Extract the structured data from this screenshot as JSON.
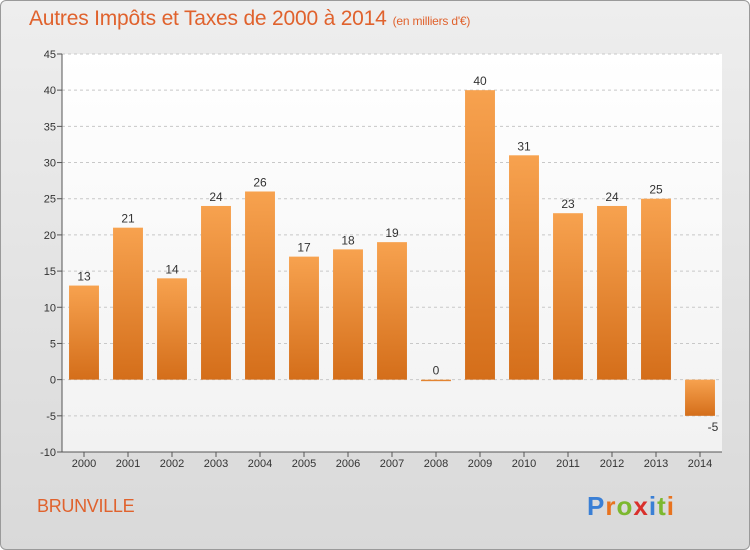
{
  "chart_data": {
    "type": "bar",
    "title": "Autres Impôts et Taxes de 2000 à 2014",
    "subtitle": "(en milliers d'€)",
    "categories": [
      "2000",
      "2001",
      "2002",
      "2003",
      "2004",
      "2005",
      "2006",
      "2007",
      "2008",
      "2009",
      "2010",
      "2011",
      "2012",
      "2013",
      "2014"
    ],
    "values": [
      13,
      21,
      14,
      24,
      26,
      17,
      18,
      19,
      0,
      40,
      31,
      23,
      24,
      25,
      -5
    ],
    "ylim": [
      -10,
      45
    ],
    "yticks": [
      -10,
      -5,
      0,
      5,
      10,
      15,
      20,
      25,
      30,
      35,
      40,
      45
    ],
    "grid": true,
    "bar_color": "#f0913a"
  },
  "commune": "BRUNVILLE",
  "logo": {
    "letters": [
      "P",
      "r",
      "o",
      "x",
      "i",
      "t",
      "i"
    ],
    "colors": [
      "#3a7fd5",
      "#e8731f",
      "#7cb82f",
      "#d9302c",
      "#3a7fd5",
      "#7cb82f",
      "#e8731f"
    ]
  }
}
